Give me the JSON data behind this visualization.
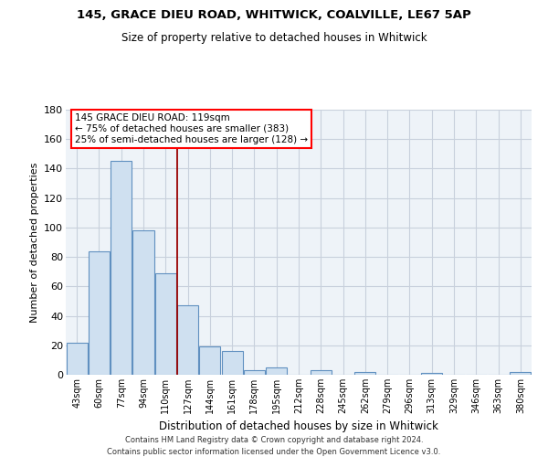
{
  "title": "145, GRACE DIEU ROAD, WHITWICK, COALVILLE, LE67 5AP",
  "subtitle": "Size of property relative to detached houses in Whitwick",
  "xlabel": "Distribution of detached houses by size in Whitwick",
  "ylabel": "Number of detached properties",
  "bar_labels": [
    "43sqm",
    "60sqm",
    "77sqm",
    "94sqm",
    "110sqm",
    "127sqm",
    "144sqm",
    "161sqm",
    "178sqm",
    "195sqm",
    "212sqm",
    "228sqm",
    "245sqm",
    "262sqm",
    "279sqm",
    "296sqm",
    "313sqm",
    "329sqm",
    "346sqm",
    "363sqm",
    "380sqm"
  ],
  "bar_values": [
    22,
    84,
    145,
    98,
    69,
    47,
    19,
    16,
    3,
    5,
    0,
    3,
    0,
    2,
    0,
    0,
    1,
    0,
    0,
    0,
    2
  ],
  "bar_color": "#cfe0f0",
  "bar_edge_color": "#6090c0",
  "ylim": [
    0,
    180
  ],
  "yticks": [
    0,
    20,
    40,
    60,
    80,
    100,
    120,
    140,
    160,
    180
  ],
  "annotation_title": "145 GRACE DIEU ROAD: 119sqm",
  "annotation_line1": "← 75% of detached houses are smaller (383)",
  "annotation_line2": "25% of semi-detached houses are larger (128) →",
  "footnote1": "Contains HM Land Registry data © Crown copyright and database right 2024.",
  "footnote2": "Contains public sector information licensed under the Open Government Licence v3.0.",
  "bg_color": "#ffffff",
  "grid_color": "#c8d0dc",
  "vline_color": "#990000",
  "vline_pos": 4.53
}
